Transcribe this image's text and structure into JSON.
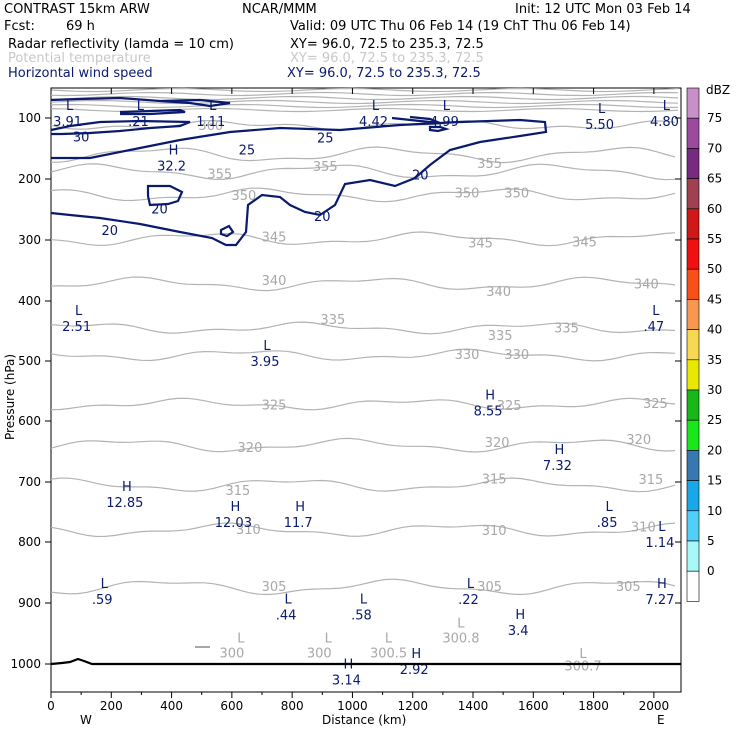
{
  "header": {
    "model": "CONTRAST 15km ARW",
    "center": "NCAR/MMM",
    "init": "Init: 12 UTC Mon 03 Feb 14",
    "fcst_label": "Fcst:",
    "fcst_value": "69 h",
    "valid": "Valid: 09 UTC Thu 06 Feb 14 (19 ChT Thu 06 Feb 14)",
    "fields": [
      {
        "name": "Radar reflectivity (lamda = 10 cm)",
        "xy": "XY=   96.0, 72.5 to 235.3, 72.5",
        "color": "#000000"
      },
      {
        "name": "Potential temperature",
        "xy": "XY=   96.0, 72.5 to 235.3, 72.5",
        "color": "#c8c8c8"
      },
      {
        "name": "Horizontal wind speed",
        "xy": "XY=  96.0, 72.5 to 235.3, 72.5",
        "color": "#0a1a6e"
      }
    ]
  },
  "chart_data": {
    "type": "cross-section contour",
    "xlabel": "Distance (km)",
    "ylabel": "Pressure (hPa)",
    "xlim": [
      0,
      2090
    ],
    "ylim": [
      1050,
      100
    ],
    "y_scale": "log",
    "x_ticks": [
      0,
      200,
      400,
      600,
      800,
      1000,
      1200,
      1400,
      1600,
      1800,
      2000
    ],
    "y_ticks": [
      100,
      200,
      300,
      400,
      500,
      600,
      700,
      800,
      900,
      1000
    ],
    "west_label": "W",
    "east_label": "E",
    "colorbar": {
      "unit": "dBZ",
      "levels": [
        75,
        70,
        65,
        60,
        55,
        50,
        45,
        40,
        35,
        30,
        25,
        20,
        15,
        10,
        5,
        0
      ],
      "colors": [
        "#c890c8",
        "#9b4aa0",
        "#782a80",
        "#a04050",
        "#d01818",
        "#f01010",
        "#f85018",
        "#f89850",
        "#f8d850",
        "#e8e800",
        "#18b818",
        "#18e818",
        "#3878b0",
        "#18a8e8",
        "#50d0f8",
        "#a8f8f8",
        "#ffffff"
      ]
    },
    "theta_labels": [
      {
        "v": "360",
        "x": 530,
        "p": 113
      },
      {
        "v": "355",
        "x": 910,
        "p": 180
      },
      {
        "v": "350",
        "x": 1380,
        "p": 224
      },
      {
        "v": "350",
        "x": 1545,
        "p": 224
      },
      {
        "v": "355",
        "x": 1455,
        "p": 175
      },
      {
        "v": "350",
        "x": 640,
        "p": 228
      },
      {
        "v": "355",
        "x": 560,
        "p": 193
      },
      {
        "v": "345",
        "x": 740,
        "p": 296
      },
      {
        "v": "345",
        "x": 1425,
        "p": 306
      },
      {
        "v": "345",
        "x": 1770,
        "p": 304
      },
      {
        "v": "340",
        "x": 740,
        "p": 367
      },
      {
        "v": "340",
        "x": 1485,
        "p": 385
      },
      {
        "v": "340",
        "x": 1975,
        "p": 373
      },
      {
        "v": "335",
        "x": 935,
        "p": 432
      },
      {
        "v": "335",
        "x": 1490,
        "p": 458
      },
      {
        "v": "335",
        "x": 1710,
        "p": 446
      },
      {
        "v": "330",
        "x": 1380,
        "p": 490
      },
      {
        "v": "330",
        "x": 1545,
        "p": 490
      },
      {
        "v": "325",
        "x": 740,
        "p": 574
      },
      {
        "v": "325",
        "x": 1520,
        "p": 575
      },
      {
        "v": "325",
        "x": 2005,
        "p": 572
      },
      {
        "v": "320",
        "x": 660,
        "p": 644
      },
      {
        "v": "320",
        "x": 1480,
        "p": 636
      },
      {
        "v": "320",
        "x": 1950,
        "p": 631
      },
      {
        "v": "315",
        "x": 620,
        "p": 715
      },
      {
        "v": "315",
        "x": 1470,
        "p": 696
      },
      {
        "v": "315",
        "x": 1990,
        "p": 697
      },
      {
        "v": "310",
        "x": 655,
        "p": 780
      },
      {
        "v": "310",
        "x": 1470,
        "p": 782
      },
      {
        "v": "310",
        "x": 1965,
        "p": 776
      },
      {
        "v": "305",
        "x": 740,
        "p": 874
      },
      {
        "v": "305",
        "x": 1455,
        "p": 874
      },
      {
        "v": "305",
        "x": 1915,
        "p": 874
      },
      {
        "v": "300",
        "x": 600,
        "p": 983
      },
      {
        "v": "300",
        "x": 890,
        "p": 983
      },
      {
        "v": "300.5",
        "x": 1120,
        "p": 983
      },
      {
        "v": "300.8",
        "x": 1360,
        "p": 958
      },
      {
        "v": "300.7",
        "x": 1765,
        "p": 1004
      }
    ],
    "wind_labels": [
      {
        "v": "30",
        "x": 100,
        "p": 132
      },
      {
        "v": "25",
        "x": 650,
        "p": 153
      },
      {
        "v": "25",
        "x": 910,
        "p": 134
      },
      {
        "v": "20",
        "x": 1225,
        "p": 194
      },
      {
        "v": "20",
        "x": 360,
        "p": 250
      },
      {
        "v": "20",
        "x": 900,
        "p": 262
      },
      {
        "v": "20",
        "x": 195,
        "p": 285
      }
    ],
    "extrema": [
      {
        "t": "L",
        "v": "3.91",
        "x": 55,
        "p": 97
      },
      {
        "t": "L",
        "v": ".21",
        "x": 290,
        "p": 97
      },
      {
        "t": "L",
        "v": "1.11",
        "x": 530,
        "p": 97
      },
      {
        "t": "L",
        "v": "4.42",
        "x": 1070,
        "p": 97
      },
      {
        "t": "L",
        "v": "4.99",
        "x": 1305,
        "p": 97
      },
      {
        "t": "L",
        "v": "5.50",
        "x": 1820,
        "p": 102
      },
      {
        "t": "L",
        "v": "4.80",
        "x": 2035,
        "p": 97
      },
      {
        "t": "H",
        "v": "32.2",
        "x": 400,
        "p": 170
      },
      {
        "t": "L",
        "v": "2.51",
        "x": 85,
        "p": 433
      },
      {
        "t": "L",
        "v": "3.95",
        "x": 710,
        "p": 492
      },
      {
        "t": "L",
        "v": ".47",
        "x": 2000,
        "p": 433
      },
      {
        "t": "H",
        "v": "8.55",
        "x": 1450,
        "p": 574
      },
      {
        "t": "H",
        "v": "7.32",
        "x": 1680,
        "p": 664
      },
      {
        "t": "H",
        "v": "12.85",
        "x": 245,
        "p": 725
      },
      {
        "t": "H",
        "v": "12.03",
        "x": 605,
        "p": 758
      },
      {
        "t": "H",
        "v": "11.7",
        "x": 820,
        "p": 758
      },
      {
        "t": "L",
        "v": ".85",
        "x": 1845,
        "p": 758
      },
      {
        "t": "L",
        "v": "1.14",
        "x": 2020,
        "p": 792
      },
      {
        "t": "L",
        "v": ".59",
        "x": 170,
        "p": 885
      },
      {
        "t": "L",
        "v": ".44",
        "x": 780,
        "p": 911
      },
      {
        "t": "L",
        "v": ".58",
        "x": 1030,
        "p": 911
      },
      {
        "t": "L",
        "v": ".22",
        "x": 1385,
        "p": 885
      },
      {
        "t": "H",
        "v": "7.27",
        "x": 2020,
        "p": 885
      },
      {
        "t": "H",
        "v": "3.4",
        "x": 1550,
        "p": 936
      },
      {
        "t": "H",
        "v": "3.14",
        "x": 980,
        "p": 1017
      },
      {
        "t": "H",
        "v": "2.92",
        "x": 1205,
        "p": 1000
      }
    ],
    "gray_extrema": [
      {
        "t": "L",
        "v": "",
        "x": 590,
        "p": 965
      },
      {
        "t": "L",
        "v": "",
        "x": 880,
        "p": 965
      },
      {
        "t": "L",
        "v": "",
        "x": 1080,
        "p": 965
      },
      {
        "t": "L",
        "v": "",
        "x": 1320,
        "p": 940
      },
      {
        "t": "L",
        "v": "",
        "x": 1725,
        "p": 990
      }
    ]
  }
}
